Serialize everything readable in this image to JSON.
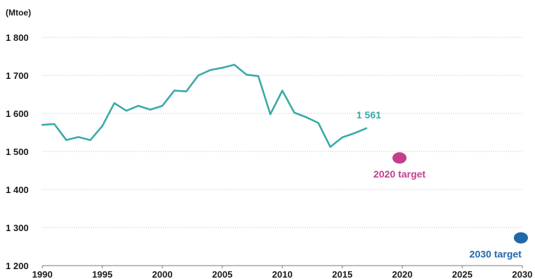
{
  "chart_data": {
    "type": "line",
    "ylabel": "(Mtoe)",
    "xlim": [
      1990,
      2030
    ],
    "ylim": [
      1200,
      1800
    ],
    "x_ticks": [
      "1990",
      "1995",
      "2000",
      "2005",
      "2010",
      "2015",
      "2020",
      "2025",
      "2030"
    ],
    "x_tick_values": [
      1990,
      1995,
      2000,
      2005,
      2010,
      2015,
      2020,
      2025,
      2030
    ],
    "y_ticks": [
      "1 200",
      "1 300",
      "1 400",
      "1 500",
      "1 600",
      "1 700",
      "1 800"
    ],
    "y_tick_values": [
      1200,
      1300,
      1400,
      1500,
      1600,
      1700,
      1800
    ],
    "grid": "horizontal-dotted",
    "series": [
      {
        "color": "#3aaaa8",
        "x": [
          1990,
          1991,
          1992,
          1993,
          1994,
          1995,
          1996,
          1997,
          1998,
          1999,
          2000,
          2001,
          2002,
          2003,
          2004,
          2005,
          2006,
          2007,
          2008,
          2009,
          2010,
          2011,
          2012,
          2013,
          2014,
          2015,
          2016,
          2017
        ],
        "values": [
          1570,
          1572,
          1530,
          1538,
          1530,
          1567,
          1627,
          1607,
          1620,
          1610,
          1620,
          1660,
          1658,
          1700,
          1714,
          1720,
          1728,
          1702,
          1698,
          1598,
          1660,
          1602,
          1590,
          1575,
          1512,
          1537,
          1548,
          1561
        ]
      }
    ],
    "annotations": [
      {
        "text": "1 561",
        "x": 2017,
        "y": 1561,
        "color": "#3aaaa8"
      }
    ],
    "targets": [
      {
        "label": "2020 target",
        "x": 2020,
        "y": 1483,
        "color": "#c23e8f"
      },
      {
        "label": "2030 target",
        "x": 2030,
        "y": 1273,
        "color": "#2168a8"
      }
    ]
  }
}
